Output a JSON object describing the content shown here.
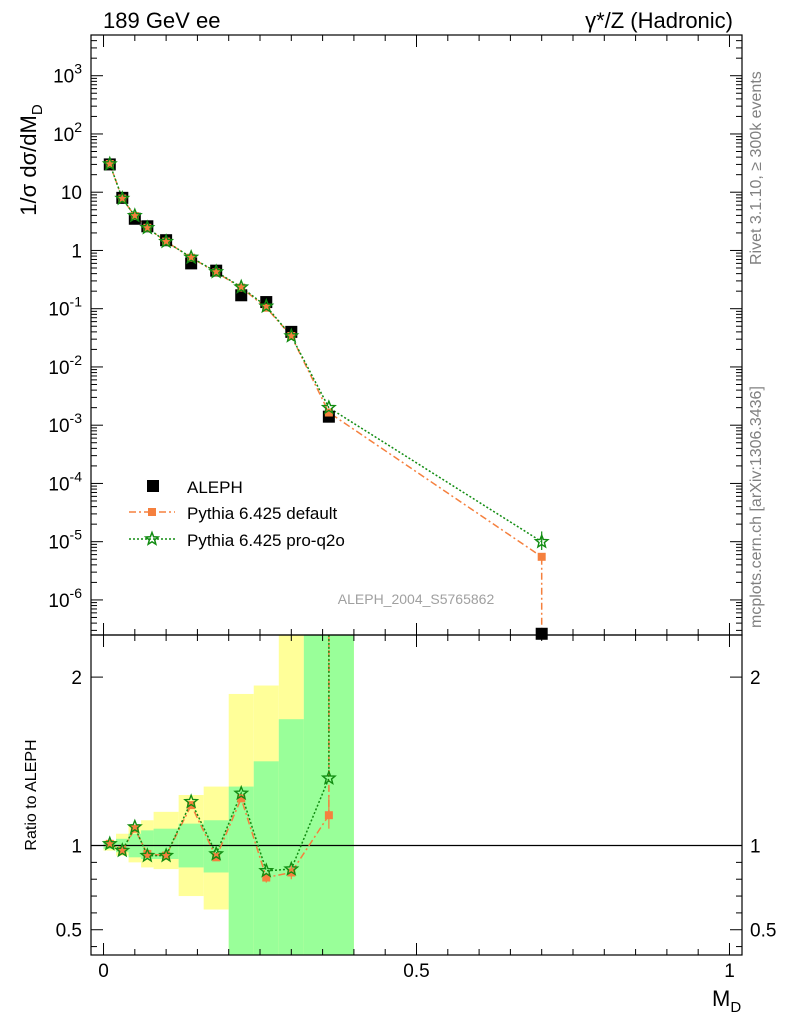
{
  "header": {
    "left": "189 GeV ee",
    "right": "γ*/Z (Hadronic)"
  },
  "side_text": {
    "rivet": "Rivet 3.1.10, ≥ 300k events",
    "mcplots": "mcplots.cern.ch [arXiv:1306.3436]"
  },
  "analysis_id": "ALEPH_2004_S5765862",
  "colors": {
    "aleph": "#000000",
    "pythia_default": "#f5803e",
    "pythia_proq2o": "#118c11",
    "band_outer": "#ffff99",
    "band_inner": "#99ff99"
  },
  "chart_data": [
    {
      "type": "scatter",
      "panel": "main",
      "ylabel": "1/σ dσ/dM_D",
      "yscale": "log",
      "ylim": [
        2.5e-07,
        5000
      ],
      "xlim": [
        -0.02,
        1.02
      ],
      "y_ticks": [
        "10^-6",
        "10^-5",
        "10^-4",
        "10^-3",
        "10^-2",
        "10^-1",
        "1",
        "10",
        "10^2",
        "10^3"
      ],
      "legend_position": "bottom-left",
      "series": [
        {
          "name": "ALEPH",
          "marker": "square",
          "x": [
            0.01,
            0.03,
            0.05,
            0.07,
            0.1,
            0.14,
            0.18,
            0.22,
            0.26,
            0.3,
            0.36,
            0.7
          ],
          "y": [
            30.0,
            8.0,
            3.5,
            2.6,
            1.5,
            0.6,
            0.45,
            0.17,
            0.13,
            0.04,
            0.0014,
            2.5e-07
          ]
        },
        {
          "name": "Pythia 6.425 default",
          "marker": "square",
          "line": "dashdot",
          "x": [
            0.01,
            0.03,
            0.05,
            0.07,
            0.1,
            0.14,
            0.18,
            0.22,
            0.26,
            0.3,
            0.36,
            0.7
          ],
          "y": [
            30.5,
            7.8,
            3.9,
            2.45,
            1.42,
            0.75,
            0.42,
            0.23,
            0.104,
            0.034,
            0.00165,
            5.5e-06
          ]
        },
        {
          "name": "Pythia 6.425 pro-q2o",
          "marker": "star",
          "line": "dotted",
          "x": [
            0.01,
            0.03,
            0.05,
            0.07,
            0.1,
            0.14,
            0.18,
            0.22,
            0.26,
            0.3,
            0.36,
            0.7
          ],
          "y": [
            30.5,
            7.8,
            3.95,
            2.45,
            1.42,
            0.76,
            0.43,
            0.235,
            0.11,
            0.034,
            0.002,
            1e-05
          ]
        }
      ]
    },
    {
      "type": "scatter",
      "panel": "ratio",
      "ylabel": "Ratio to ALEPH",
      "xlabel": "M_D",
      "xlim": [
        -0.02,
        1.02
      ],
      "ylim": [
        0.35,
        2.25
      ],
      "x_ticks": [
        "0",
        "0.5",
        "1"
      ],
      "y_ticks": [
        "0.5",
        "1",
        "2"
      ],
      "reference_line": 1,
      "bands": {
        "edges": [
          0.0,
          0.02,
          0.04,
          0.06,
          0.08,
          0.12,
          0.16,
          0.2,
          0.24,
          0.28,
          0.32,
          0.4
        ],
        "outer_low": [
          0.97,
          0.94,
          0.9,
          0.87,
          0.86,
          0.7,
          0.62,
          0.35,
          0.35,
          0.35,
          0.35
        ],
        "outer_high": [
          1.03,
          1.07,
          1.12,
          1.15,
          1.2,
          1.3,
          1.35,
          1.9,
          1.95,
          2.25,
          2.25
        ],
        "inner_low": [
          0.98,
          0.96,
          0.93,
          0.92,
          0.92,
          0.87,
          0.84,
          0.35,
          0.35,
          0.35,
          0.35
        ],
        "inner_high": [
          1.02,
          1.04,
          1.07,
          1.09,
          1.1,
          1.13,
          1.15,
          1.35,
          1.5,
          1.75,
          2.25
        ]
      },
      "series": [
        {
          "name": "Pythia 6.425 default",
          "x": [
            0.01,
            0.03,
            0.05,
            0.07,
            0.1,
            0.14,
            0.18,
            0.22,
            0.26,
            0.3,
            0.36,
            0.7
          ],
          "y": [
            1.01,
            0.97,
            1.1,
            0.95,
            0.94,
            1.24,
            0.93,
            1.28,
            0.81,
            0.84,
            1.18,
            null
          ]
        },
        {
          "name": "Pythia 6.425 pro-q2o",
          "x": [
            0.01,
            0.03,
            0.05,
            0.07,
            0.1,
            0.14,
            0.18,
            0.22,
            0.26,
            0.3,
            0.36,
            0.7
          ],
          "y": [
            1.01,
            0.97,
            1.11,
            0.94,
            0.94,
            1.26,
            0.95,
            1.31,
            0.85,
            0.86,
            1.4,
            null
          ]
        }
      ]
    }
  ]
}
